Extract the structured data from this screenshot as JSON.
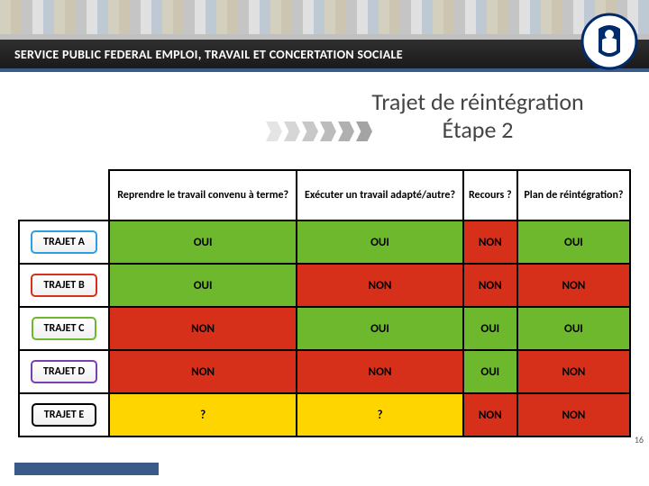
{
  "header": {
    "org_title": "SERVICE PUBLIC FEDERAL EMPLOI, TRAVAIL ET CONCERTATION SOCIALE",
    "band_bg": "#1a1a1a",
    "band_border_top": "#c0c0c0",
    "band_border_bottom": "#3a5a8a"
  },
  "page": {
    "title_line1": "Trajet de réintégration",
    "title_line2": "Étape 2",
    "number": "16"
  },
  "columns": [
    {
      "label": "Reprendre le travail convenu à terme?"
    },
    {
      "label": "Exécuter un travail adapté/autre?"
    },
    {
      "label": "Recours ?"
    },
    {
      "label": "Plan de réintégration?"
    }
  ],
  "rows": [
    {
      "label": "TRAJET A",
      "pill_border": "#2aa0e0",
      "cells": [
        {
          "value": "OUI",
          "bg": "#6db82c"
        },
        {
          "value": "OUI",
          "bg": "#6db82c"
        },
        {
          "value": "NON",
          "bg": "#d6301a"
        },
        {
          "value": "OUI",
          "bg": "#6db82c"
        }
      ]
    },
    {
      "label": "TRAJET B",
      "pill_border": "#d6301a",
      "cells": [
        {
          "value": "OUI",
          "bg": "#6db82c"
        },
        {
          "value": "NON",
          "bg": "#d6301a"
        },
        {
          "value": "NON",
          "bg": "#d6301a"
        },
        {
          "value": "NON",
          "bg": "#d6301a"
        }
      ]
    },
    {
      "label": "TRAJET C",
      "pill_border": "#6db82c",
      "cells": [
        {
          "value": "NON",
          "bg": "#d6301a"
        },
        {
          "value": "OUI",
          "bg": "#6db82c"
        },
        {
          "value": "OUI",
          "bg": "#6db82c"
        },
        {
          "value": "OUI",
          "bg": "#6db82c"
        }
      ]
    },
    {
      "label": "TRAJET D",
      "pill_border": "#7d3fb0",
      "cells": [
        {
          "value": "NON",
          "bg": "#d6301a"
        },
        {
          "value": "NON",
          "bg": "#d6301a"
        },
        {
          "value": "OUI",
          "bg": "#6db82c"
        },
        {
          "value": "NON",
          "bg": "#d6301a"
        }
      ]
    },
    {
      "label": "TRAJET E",
      "pill_border": "#000000",
      "cells": [
        {
          "value": "?",
          "bg": "#ffd500"
        },
        {
          "value": "?",
          "bg": "#ffd500"
        },
        {
          "value": "NON",
          "bg": "#d6301a"
        },
        {
          "value": "NON",
          "bg": "#d6301a"
        }
      ]
    }
  ],
  "styling": {
    "oui_bg": "#6db82c",
    "non_bg": "#d6301a",
    "q_bg": "#ffd500",
    "cell_text": "#000000",
    "border_color": "#000000",
    "title_color": "#444444",
    "footer_bar": "#3a5a8a"
  }
}
